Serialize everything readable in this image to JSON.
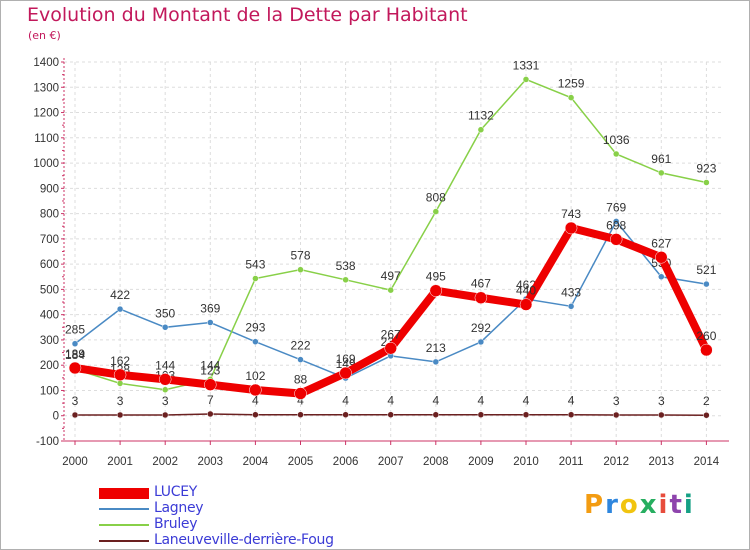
{
  "title": "Evolution du Montant de la Dette par Habitant",
  "unit": "(en €)",
  "logo": "Proxiti",
  "chart_data": {
    "type": "line",
    "x": [
      "2000",
      "2001",
      "2002",
      "2003",
      "2004",
      "2005",
      "2006",
      "2007",
      "2008",
      "2009",
      "2010",
      "2011",
      "2012",
      "2013",
      "2014"
    ],
    "ylim": [
      -100,
      1400
    ],
    "yticks": [
      -100,
      0,
      100,
      200,
      300,
      400,
      500,
      600,
      700,
      800,
      900,
      1000,
      1100,
      1200,
      1300,
      1400
    ],
    "grid": true,
    "legend_position": "bottom-left",
    "series": [
      {
        "name": "Lagney",
        "color": "#4a8ac4",
        "width": 1.5,
        "marker": 3,
        "values": [
          285,
          422,
          350,
          369,
          293,
          222,
          149,
          237,
          213,
          292,
          462,
          433,
          769,
          550,
          521
        ]
      },
      {
        "name": "Bruley",
        "color": "#88d048",
        "width": 1.5,
        "marker": 3,
        "values": [
          184,
          128,
          103,
          144,
          543,
          578,
          538,
          497,
          808,
          1132,
          1331,
          1259,
          1036,
          961,
          923
        ]
      },
      {
        "name": "Laneuveville-derrière-Foug",
        "color": "#6b2020",
        "width": 1.5,
        "marker": 3,
        "values": [
          3,
          3,
          3,
          7,
          4,
          4,
          4,
          4,
          4,
          4,
          4,
          4,
          3,
          3,
          2
        ]
      },
      {
        "name": "LUCEY",
        "color": "#ee0000",
        "width": 8,
        "marker": 6,
        "values": [
          189,
          162,
          144,
          123,
          102,
          88,
          169,
          267,
          495,
          467,
          440,
          743,
          698,
          627,
          260
        ]
      }
    ],
    "legend_order": [
      "LUCEY",
      "Lagney",
      "Bruley",
      "Laneuveville-derrière-Foug"
    ]
  }
}
